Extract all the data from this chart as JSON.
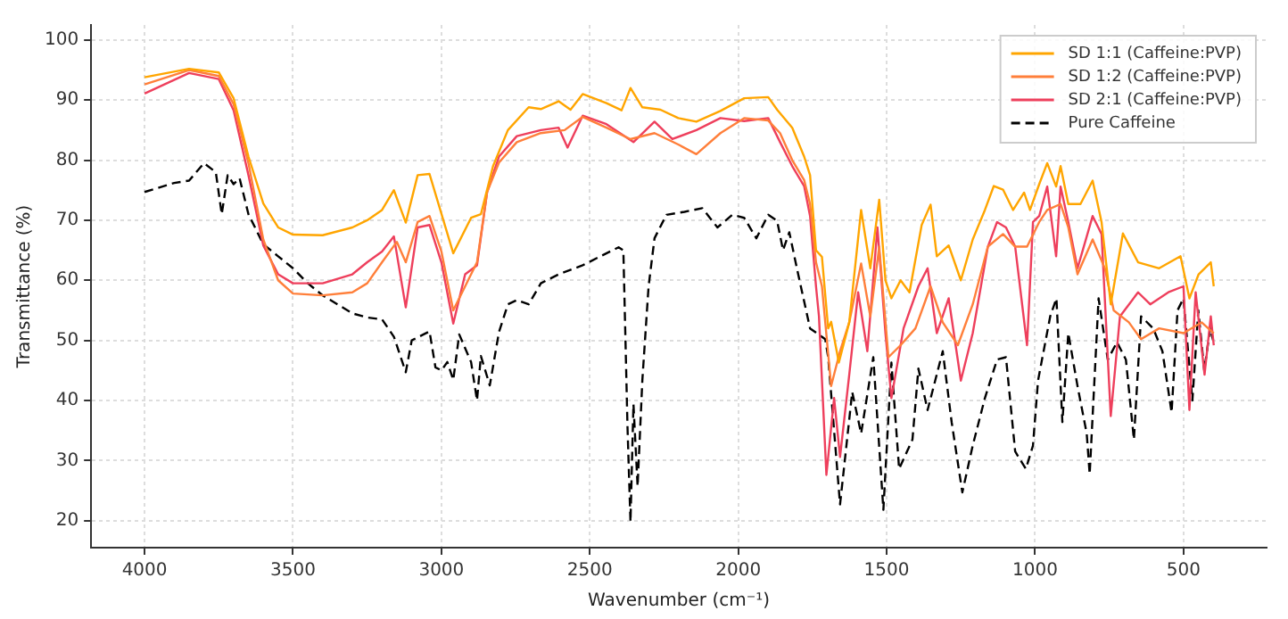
{
  "chart_data": {
    "type": "line",
    "xlabel": "Wavenumber (cm⁻¹)",
    "ylabel": "Transmittance (%)",
    "xlim": [
      4180,
      220
    ],
    "xticks": [
      4000,
      3500,
      3000,
      2500,
      2000,
      1500,
      1000,
      500
    ],
    "ylim": [
      15.5,
      102.5
    ],
    "yticks": [
      20,
      30,
      40,
      50,
      60,
      70,
      80,
      90,
      100
    ],
    "grid": true,
    "legend": "top right",
    "series": [
      {
        "name": "SD 1:1 (Caffeine:PVP)",
        "color": "#ffa500",
        "line_style": "solid",
        "x": [
          4000,
          3850,
          3750,
          3700,
          3650,
          3600,
          3550,
          3500,
          3400,
          3300,
          3250,
          3200,
          3160,
          3120,
          3080,
          3040,
          2960,
          2900,
          2867,
          2826,
          2776,
          2706,
          2665,
          2605,
          2565,
          2524,
          2444,
          2393,
          2363,
          2323,
          2262,
          2202,
          2141,
          2060,
          1980,
          1899,
          1869,
          1818,
          1778,
          1758,
          1738,
          1718,
          1697,
          1687,
          1661,
          1626,
          1586,
          1555,
          1525,
          1504,
          1484,
          1453,
          1423,
          1382,
          1352,
          1331,
          1291,
          1250,
          1210,
          1169,
          1139,
          1108,
          1074,
          1037,
          1017,
          986,
          959,
          929,
          914,
          888,
          847,
          806,
          776,
          745,
          704,
          653,
          582,
          510,
          480,
          449,
          408,
          398
        ],
        "values": [
          93.8,
          95.2,
          94.6,
          90.3,
          80.6,
          72.8,
          68.8,
          67.6,
          67.5,
          68.8,
          70,
          71.7,
          75,
          69.6,
          77.5,
          77.7,
          64.5,
          70.4,
          71,
          79,
          85,
          88.8,
          88.5,
          89.8,
          88.4,
          91,
          89.5,
          88.3,
          92,
          88.8,
          88.4,
          87,
          86.4,
          88.2,
          90.3,
          90.5,
          88.4,
          85.4,
          80.6,
          77.5,
          65,
          63.9,
          52,
          53.1,
          46.3,
          53,
          71.7,
          62,
          73.4,
          60,
          57,
          60,
          58,
          69.2,
          72.6,
          64,
          65.8,
          60,
          66.8,
          71.7,
          75.7,
          75.1,
          71.7,
          74.6,
          71.7,
          76,
          79.5,
          75.6,
          79,
          72.7,
          72.7,
          76.6,
          69.7,
          56,
          67.8,
          63,
          62,
          64,
          57,
          61,
          63,
          59
        ]
      },
      {
        "name": "SD 1:2 (Caffeine:PVP)",
        "color": "#ff7f3a",
        "line_style": "solid",
        "x": [
          4000,
          3850,
          3750,
          3700,
          3650,
          3600,
          3550,
          3500,
          3400,
          3300,
          3250,
          3200,
          3150,
          3120,
          3080,
          3040,
          3000,
          2960,
          2920,
          2880,
          2846,
          2806,
          2746,
          2665,
          2585,
          2524,
          2444,
          2363,
          2282,
          2202,
          2141,
          2060,
          1980,
          1899,
          1859,
          1818,
          1778,
          1758,
          1738,
          1718,
          1687,
          1657,
          1626,
          1586,
          1555,
          1525,
          1494,
          1453,
          1403,
          1352,
          1311,
          1260,
          1210,
          1159,
          1108,
          1067,
          1027,
          986,
          959,
          914,
          888,
          857,
          806,
          765,
          735,
          684,
          643,
          582,
          500,
          439,
          398
        ],
        "values": [
          92.6,
          95,
          94,
          89.3,
          79.5,
          66.8,
          60,
          57.8,
          57.5,
          58,
          59.5,
          63,
          66.4,
          63,
          69.7,
          70.7,
          64.8,
          55,
          59,
          63,
          74.7,
          79.6,
          83,
          84.5,
          85,
          87.2,
          85.4,
          83.5,
          84.5,
          82.6,
          81,
          84.5,
          87,
          86.6,
          84.5,
          80,
          76.7,
          72.7,
          63,
          59,
          42.4,
          48.2,
          53,
          62.8,
          54,
          65.6,
          47.2,
          49.2,
          52,
          59,
          53,
          49.2,
          56,
          65.6,
          67.7,
          65.6,
          65.6,
          69.7,
          71.7,
          72.7,
          68.8,
          61,
          66.8,
          62,
          55,
          53,
          50.2,
          52,
          51.2,
          53,
          51.2
        ]
      },
      {
        "name": "SD 2:1 (Caffeine:PVP)",
        "color": "#ee3f5c",
        "line_style": "solid",
        "x": [
          4000,
          3850,
          3750,
          3700,
          3650,
          3600,
          3550,
          3500,
          3400,
          3300,
          3250,
          3200,
          3160,
          3120,
          3080,
          3040,
          3000,
          2960,
          2920,
          2880,
          2846,
          2806,
          2746,
          2665,
          2605,
          2575,
          2524,
          2444,
          2353,
          2282,
          2222,
          2141,
          2060,
          1980,
          1899,
          1859,
          1818,
          1778,
          1758,
          1738,
          1728,
          1703,
          1677,
          1657,
          1626,
          1596,
          1565,
          1531,
          1504,
          1484,
          1443,
          1393,
          1362,
          1331,
          1291,
          1250,
          1210,
          1159,
          1128,
          1098,
          1067,
          1027,
          1007,
          986,
          959,
          929,
          914,
          888,
          857,
          806,
          776,
          745,
          714,
          653,
          612,
          551,
          500,
          480,
          459,
          429,
          408,
          398
        ],
        "values": [
          91.1,
          94.5,
          93.5,
          88.3,
          77.5,
          65.8,
          61,
          59.5,
          59.5,
          61,
          63,
          64.8,
          67.3,
          55.5,
          68.8,
          69.2,
          63,
          52.8,
          61,
          62.5,
          74.7,
          80.6,
          84,
          85,
          85.4,
          82.1,
          87.4,
          86,
          83,
          86.4,
          83.5,
          85,
          87,
          86.5,
          87,
          83,
          79,
          75.7,
          70.7,
          59,
          54,
          27.6,
          40.4,
          30.6,
          44.3,
          58,
          48.2,
          68.8,
          51.2,
          40.4,
          52,
          59,
          62,
          51.2,
          57,
          43.3,
          51.2,
          65.6,
          69.7,
          68.8,
          65.6,
          49.2,
          69.7,
          70.7,
          75.6,
          64,
          75.6,
          69.7,
          62,
          70.7,
          67.7,
          37.4,
          54,
          58,
          56,
          58,
          59,
          38.4,
          58,
          44.3,
          54,
          49.2
        ]
      },
      {
        "name": "Pure Caffeine",
        "color": "#000000",
        "line_style": "dashed",
        "x": [
          4000,
          3900,
          3850,
          3800,
          3760,
          3740,
          3720,
          3700,
          3680,
          3650,
          3600,
          3550,
          3500,
          3450,
          3400,
          3350,
          3300,
          3250,
          3200,
          3160,
          3120,
          3100,
          3060,
          3040,
          3020,
          3000,
          2980,
          2960,
          2940,
          2900,
          2880,
          2867,
          2837,
          2806,
          2776,
          2746,
          2706,
          2665,
          2605,
          2524,
          2464,
          2403,
          2387,
          2373,
          2363,
          2353,
          2339,
          2323,
          2302,
          2282,
          2242,
          2181,
          2121,
          2070,
          2020,
          1980,
          1939,
          1899,
          1869,
          1849,
          1828,
          1798,
          1758,
          1707,
          1697,
          1657,
          1616,
          1586,
          1545,
          1511,
          1484,
          1458,
          1413,
          1393,
          1362,
          1311,
          1281,
          1245,
          1210,
          1169,
          1128,
          1098,
          1067,
          1031,
          1007,
          990,
          949,
          928,
          908,
          888,
          857,
          826,
          816,
          786,
          755,
          724,
          694,
          667,
          643,
          602,
          571,
          540,
          520,
          500,
          470,
          450,
          430,
          410,
          400
        ],
        "values": [
          74.7,
          76.2,
          76.6,
          79.5,
          78,
          71,
          77.5,
          76,
          77,
          71,
          66,
          64,
          62,
          59.5,
          57.5,
          56,
          54.5,
          53.8,
          53.5,
          50.6,
          44.7,
          50,
          51,
          51.5,
          45.5,
          45,
          46.4,
          43.4,
          51,
          46.4,
          40,
          47.4,
          42.5,
          51.4,
          56,
          56.7,
          56,
          59.5,
          61,
          62.5,
          64,
          65.5,
          65,
          35.5,
          19.8,
          39.4,
          25.7,
          43.4,
          59,
          67,
          70.9,
          71.4,
          72,
          68.8,
          70.9,
          70.4,
          67,
          70.9,
          69.9,
          65,
          68,
          61,
          52,
          50.2,
          47.2,
          22.7,
          41.4,
          34.5,
          47.2,
          21.8,
          46.3,
          28.6,
          33.5,
          45.3,
          38.4,
          48.2,
          36.4,
          24.7,
          32.5,
          40.4,
          46.8,
          47.2,
          31.5,
          28.6,
          32.5,
          43.3,
          54,
          57,
          36.4,
          51.2,
          42.4,
          34.5,
          27.7,
          57,
          46.8,
          49.7,
          46.8,
          33.5,
          54,
          52,
          48.2,
          38,
          55,
          57,
          40,
          55,
          45,
          52,
          50
        ]
      }
    ]
  }
}
